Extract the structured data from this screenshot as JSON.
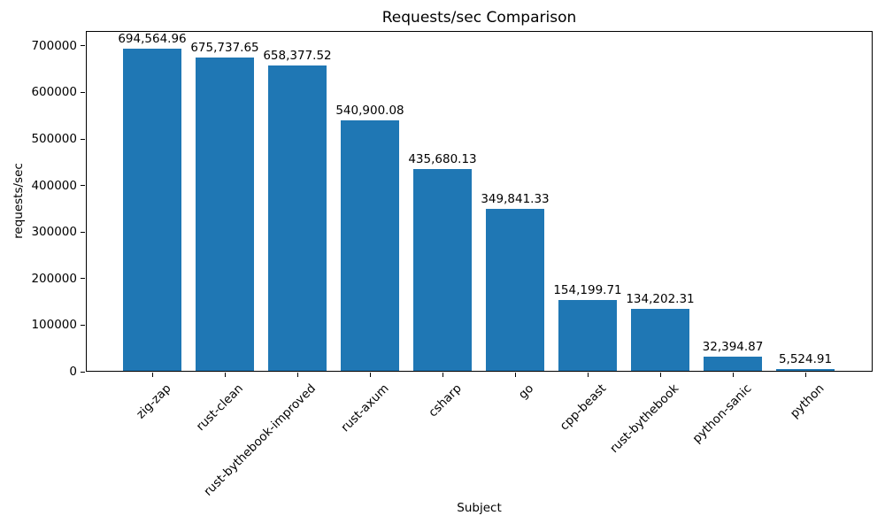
{
  "chart_data": {
    "type": "bar",
    "title": "Requests/sec Comparison",
    "xlabel": "Subject",
    "ylabel": "requests/sec",
    "categories": [
      "zig-zap",
      "rust-clean",
      "rust-bythebook-improved",
      "rust-axum",
      "csharp",
      "go",
      "cpp-beast",
      "rust-bythebook",
      "python-sanic",
      "python"
    ],
    "values": [
      694564.96,
      675737.65,
      658377.52,
      540900.08,
      435680.13,
      349841.33,
      154199.71,
      134202.31,
      32394.87,
      5524.91
    ],
    "value_labels": [
      "694,564.96",
      "675,737.65",
      "658,377.52",
      "540,900.08",
      "435,680.13",
      "349,841.33",
      "154,199.71",
      "134,202.31",
      "32,394.87",
      "5,524.91"
    ],
    "y_ticks": [
      0,
      100000,
      200000,
      300000,
      400000,
      500000,
      600000,
      700000
    ],
    "y_tick_labels": [
      "0",
      "100000",
      "200000",
      "300000",
      "400000",
      "500000",
      "600000",
      "700000"
    ],
    "ylim": [
      0,
      732000
    ],
    "bar_color": "#1f77b4",
    "text_color": "#000000",
    "grid": false,
    "legend": null
  }
}
